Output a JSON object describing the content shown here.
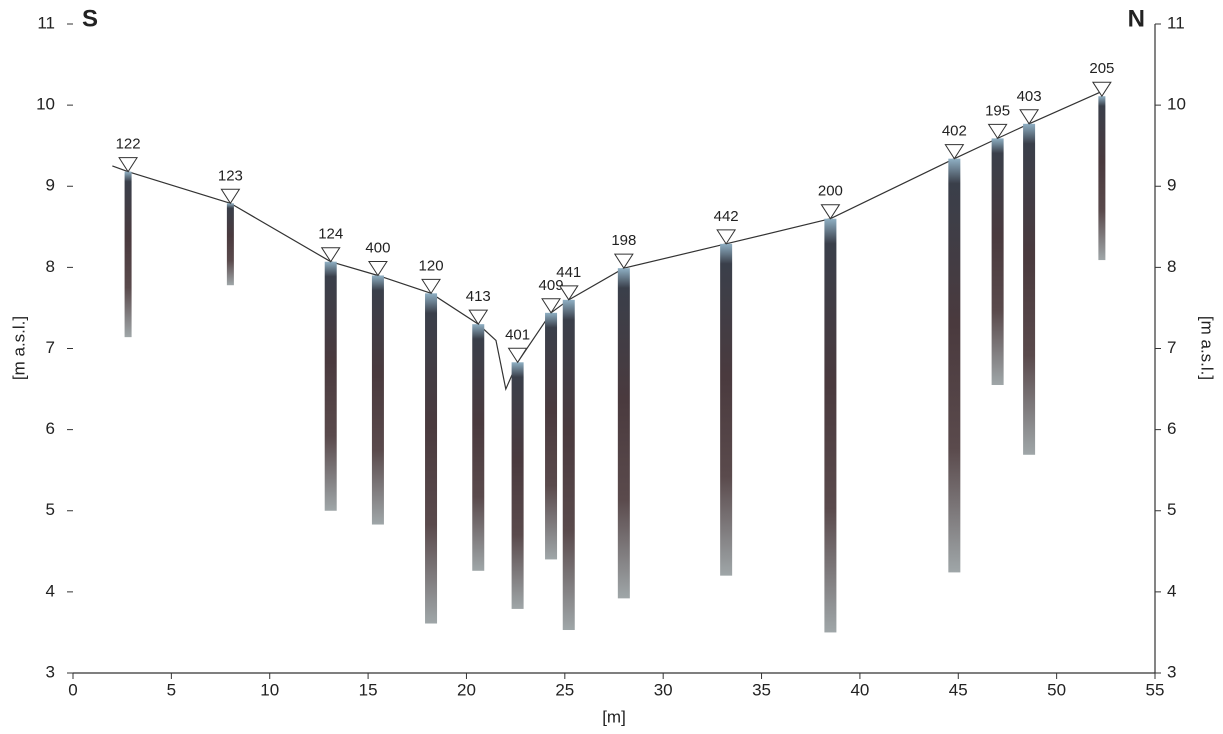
{
  "chart_data": {
    "type": "core-section",
    "left_label": "S",
    "right_label": "N",
    "xlabel": "[m]",
    "ylabel": "[m a.s.l.]",
    "y2label": "[m a.s.l.]",
    "xlim": [
      0,
      55
    ],
    "xticks": [
      0,
      5,
      10,
      15,
      20,
      25,
      30,
      35,
      40,
      45,
      50,
      55
    ],
    "ylim": [
      3,
      11
    ],
    "yticks": [
      3,
      4,
      5,
      6,
      7,
      8,
      9,
      10,
      11
    ],
    "y2lim": [
      3,
      11
    ],
    "y2ticks": [
      3,
      4,
      5,
      6,
      7,
      8,
      9,
      10,
      11
    ],
    "surface": {
      "x": [
        2.0,
        2.8,
        8.0,
        13.1,
        15.5,
        18.2,
        20.6,
        21.5,
        22.0,
        22.6,
        24.3,
        25.2,
        28.0,
        33.2,
        38.5,
        44.8,
        47.0,
        48.6,
        52.5
      ],
      "y": [
        9.25,
        9.18,
        8.79,
        8.07,
        7.9,
        7.68,
        7.3,
        7.1,
        6.5,
        6.83,
        7.44,
        7.6,
        7.99,
        8.29,
        8.6,
        9.34,
        9.59,
        9.77,
        10.19
      ]
    },
    "cores": [
      {
        "label": "122",
        "x": 2.8,
        "top": 9.18,
        "bottom": 7.14
      },
      {
        "label": "123",
        "x": 8.0,
        "top": 8.79,
        "bottom": 7.78
      },
      {
        "label": "124",
        "x": 13.1,
        "top": 8.07,
        "bottom": 5.0
      },
      {
        "label": "400",
        "x": 15.5,
        "top": 7.9,
        "bottom": 4.83
      },
      {
        "label": "120",
        "x": 18.2,
        "top": 7.68,
        "bottom": 3.61
      },
      {
        "label": "413",
        "x": 20.6,
        "top": 7.3,
        "bottom": 4.26
      },
      {
        "label": "401",
        "x": 22.6,
        "top": 6.83,
        "bottom": 3.79
      },
      {
        "label": "409",
        "x": 24.3,
        "top": 7.44,
        "bottom": 4.4
      },
      {
        "label": "441",
        "x": 25.2,
        "top": 7.6,
        "bottom": 3.53
      },
      {
        "label": "198",
        "x": 28.0,
        "top": 7.99,
        "bottom": 3.92
      },
      {
        "label": "442",
        "x": 33.2,
        "top": 8.29,
        "bottom": 4.2
      },
      {
        "label": "200",
        "x": 38.5,
        "top": 8.6,
        "bottom": 3.5
      },
      {
        "label": "402",
        "x": 44.8,
        "top": 9.34,
        "bottom": 4.24
      },
      {
        "label": "195",
        "x": 47.0,
        "top": 9.59,
        "bottom": 6.55
      },
      {
        "label": "403",
        "x": 48.6,
        "top": 9.77,
        "bottom": 5.69
      },
      {
        "label": "205",
        "x": 52.3,
        "top": 10.11,
        "bottom": 8.09
      }
    ]
  }
}
